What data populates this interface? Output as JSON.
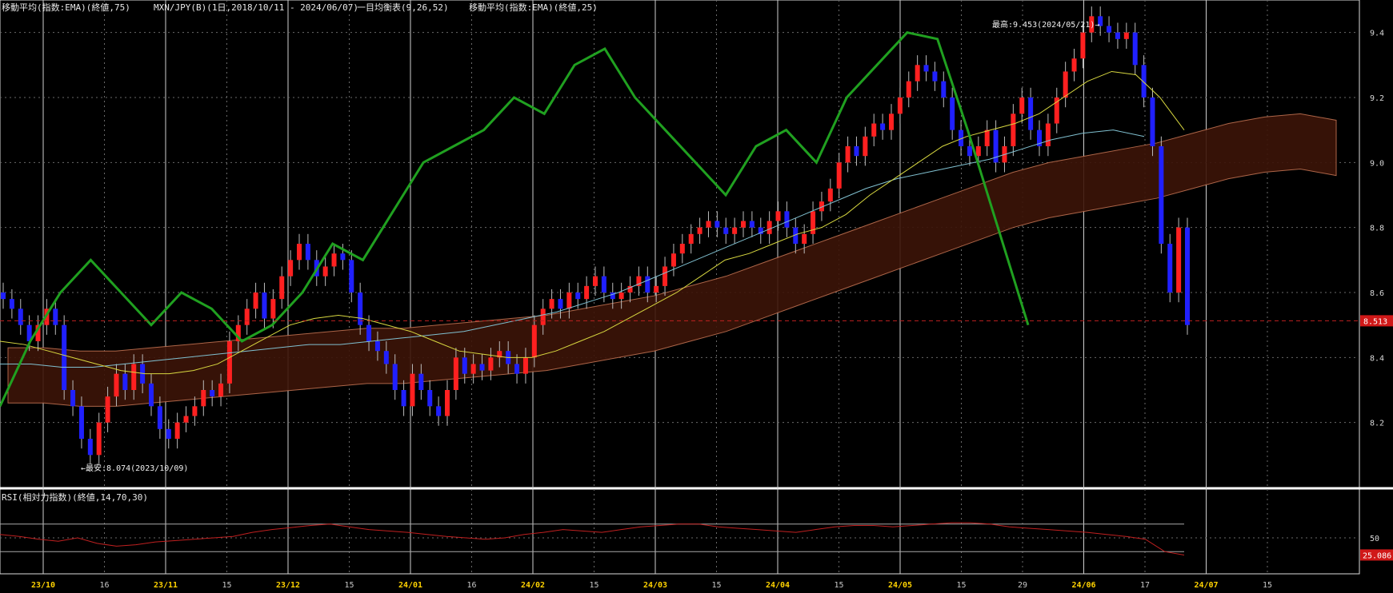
{
  "header": {
    "ema75": "移動平均(指数:EMA)(終値,75)",
    "symbol": "MXN/JPY(B)(1日,2018/10/11 - 2024/06/07)",
    "ichimoku": "一目均衡表(9,26,52)",
    "ema25": "移動平均(指数:EMA)(終値,25)"
  },
  "annotations": {
    "high": "最高:9.453(2024/05/21)→",
    "low": "←最安:8.074(2023/10/09)"
  },
  "rsi_header": "RSI(相対力指数)(終値,14,70,30)",
  "colors": {
    "bull": "#ff2020",
    "bear": "#2020ff",
    "ema25": "#d8d840",
    "ema75": "#80c0d0",
    "tenkan": "#c02020",
    "kijun": "#2020c0",
    "chikou": "#20a020",
    "kumo_bull": "#3c1408",
    "kumo_bear": "#2a2a55",
    "rsi": "#c02020"
  },
  "chart_data": [
    {
      "type": "candlestick",
      "title": "MXN/JPY(B)(1日,2018/10/11 - 2024/06/07)",
      "ylim": [
        8.0,
        9.5
      ],
      "yticks": [
        "9.4",
        "9.2",
        "9.0",
        "8.8",
        "8.6",
        "8.4",
        "8.2"
      ],
      "xticks": [
        "23/10",
        "16",
        "23/11",
        "15",
        "23/12",
        "15",
        "24/01",
        "16",
        "24/02",
        "15",
        "24/03",
        "15",
        "24/04",
        "15",
        "24/05",
        "15",
        "29",
        "24/06",
        "17",
        "24/07",
        "15"
      ],
      "last_price": "8.513",
      "ohlc_close": [
        8.58,
        8.55,
        8.5,
        8.45,
        8.5,
        8.55,
        8.5,
        8.3,
        8.25,
        8.15,
        8.1,
        8.2,
        8.28,
        8.35,
        8.3,
        8.38,
        8.32,
        8.25,
        8.18,
        8.15,
        8.2,
        8.22,
        8.25,
        8.3,
        8.28,
        8.32,
        8.45,
        8.5,
        8.55,
        8.6,
        8.52,
        8.58,
        8.65,
        8.7,
        8.75,
        8.7,
        8.65,
        8.68,
        8.72,
        8.7,
        8.6,
        8.5,
        8.45,
        8.42,
        8.38,
        8.3,
        8.25,
        8.35,
        8.3,
        8.25,
        8.22,
        8.3,
        8.4,
        8.35,
        8.38,
        8.36,
        8.4,
        8.42,
        8.38,
        8.35,
        8.4,
        8.5,
        8.55,
        8.58,
        8.55,
        8.6,
        8.58,
        8.62,
        8.65,
        8.6,
        8.58,
        8.6,
        8.62,
        8.65,
        8.6,
        8.62,
        8.68,
        8.72,
        8.75,
        8.78,
        8.8,
        8.82,
        8.8,
        8.78,
        8.8,
        8.82,
        8.8,
        8.78,
        8.82,
        8.85,
        8.8,
        8.75,
        8.78,
        8.85,
        8.88,
        8.92,
        9.0,
        9.05,
        9.02,
        9.08,
        9.12,
        9.1,
        9.15,
        9.2,
        9.25,
        9.3,
        9.28,
        9.25,
        9.2,
        9.1,
        9.05,
        9.02,
        9.05,
        9.1,
        9.0,
        9.05,
        9.15,
        9.2,
        9.1,
        9.05,
        9.12,
        9.2,
        9.28,
        9.32,
        9.4,
        9.45,
        9.42,
        9.4,
        9.38,
        9.4,
        9.3,
        9.2,
        9.05,
        8.75,
        8.6,
        8.8,
        8.5
      ],
      "ema25": [
        8.45,
        8.44,
        8.42,
        8.4,
        8.38,
        8.36,
        8.35,
        8.35,
        8.36,
        8.38,
        8.42,
        8.46,
        8.5,
        8.52,
        8.53,
        8.52,
        8.5,
        8.48,
        8.45,
        8.42,
        8.41,
        8.4,
        8.4,
        8.42,
        8.45,
        8.48,
        8.52,
        8.56,
        8.6,
        8.65,
        8.7,
        8.72,
        8.75,
        8.78,
        8.8,
        8.84,
        8.9,
        8.95,
        9.0,
        9.05,
        9.08,
        9.1,
        9.12,
        9.15,
        9.2,
        9.25,
        9.28,
        9.27,
        9.2,
        9.1
      ],
      "ema75": [
        8.38,
        8.38,
        8.37,
        8.37,
        8.38,
        8.39,
        8.4,
        8.41,
        8.42,
        8.43,
        8.44,
        8.44,
        8.45,
        8.46,
        8.47,
        8.48,
        8.5,
        8.52,
        8.54,
        8.57,
        8.6,
        8.64,
        8.68,
        8.72,
        8.76,
        8.8,
        8.84,
        8.88,
        8.92,
        8.95,
        8.97,
        8.99,
        9.01,
        9.04,
        9.07,
        9.09,
        9.1,
        9.08
      ],
      "chikou_span": [
        8.25,
        8.45,
        8.6,
        8.7,
        8.6,
        8.5,
        8.6,
        8.55,
        8.45,
        8.5,
        8.6,
        8.75,
        8.7,
        8.85,
        9.0,
        9.05,
        9.1,
        9.2,
        9.15,
        9.3,
        9.35,
        9.2,
        9.1,
        9.0,
        8.9,
        9.05,
        9.1,
        9.0,
        9.2,
        9.3,
        9.4,
        9.38,
        9.1,
        8.8,
        8.5
      ]
    },
    {
      "type": "line",
      "title": "RSI(相対力指数)(終値,14,70,30)",
      "ylim": [
        0,
        100
      ],
      "yticks": [
        "50"
      ],
      "last_value": "25.086",
      "values": [
        55,
        52,
        48,
        45,
        50,
        42,
        38,
        40,
        44,
        46,
        48,
        50,
        52,
        58,
        62,
        65,
        68,
        70,
        66,
        62,
        60,
        58,
        55,
        52,
        50,
        48,
        50,
        55,
        58,
        62,
        60,
        58,
        62,
        66,
        68,
        70,
        70,
        66,
        64,
        62,
        60,
        58,
        62,
        66,
        68,
        68,
        66,
        68,
        70,
        72,
        72,
        70,
        66,
        64,
        62,
        60,
        58,
        55,
        52,
        48,
        30,
        25
      ]
    }
  ]
}
